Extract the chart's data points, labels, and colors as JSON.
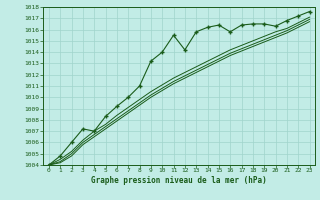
{
  "title": "Graphe pression niveau de la mer (hPa)",
  "bg_color": "#c2ece6",
  "grid_color": "#a0d4cc",
  "line_color": "#1a5c1a",
  "marker_color": "#1a5c1a",
  "xlim": [
    -0.5,
    23.5
  ],
  "ylim": [
    1004,
    1018
  ],
  "xticks": [
    0,
    1,
    2,
    3,
    4,
    5,
    6,
    7,
    8,
    9,
    10,
    11,
    12,
    13,
    14,
    15,
    16,
    17,
    18,
    19,
    20,
    21,
    22,
    23
  ],
  "yticks": [
    1004,
    1005,
    1006,
    1007,
    1008,
    1009,
    1010,
    1011,
    1012,
    1013,
    1014,
    1015,
    1016,
    1017,
    1018
  ],
  "series1_x": [
    0,
    1,
    2,
    3,
    4,
    5,
    6,
    7,
    8,
    9,
    10,
    11,
    12,
    13,
    14,
    15,
    16,
    17,
    18,
    19,
    20,
    21,
    22,
    23
  ],
  "series1_y": [
    1004.0,
    1004.8,
    1006.0,
    1007.2,
    1007.0,
    1008.3,
    1009.2,
    1010.0,
    1011.0,
    1013.2,
    1014.0,
    1015.5,
    1014.2,
    1015.8,
    1016.2,
    1016.4,
    1015.8,
    1016.4,
    1016.5,
    1016.5,
    1016.3,
    1016.8,
    1017.2,
    1017.6
  ],
  "series2_y": [
    1004.0,
    1004.5,
    1005.2,
    1006.2,
    1007.0,
    1007.6,
    1008.4,
    1009.1,
    1009.8,
    1010.5,
    1011.1,
    1011.7,
    1012.2,
    1012.7,
    1013.2,
    1013.7,
    1014.2,
    1014.6,
    1015.0,
    1015.4,
    1015.8,
    1016.1,
    1016.6,
    1017.1
  ],
  "series3_y": [
    1004.0,
    1004.3,
    1005.0,
    1006.0,
    1006.7,
    1007.4,
    1008.1,
    1008.8,
    1009.5,
    1010.2,
    1010.8,
    1011.4,
    1011.9,
    1012.4,
    1012.9,
    1013.4,
    1013.9,
    1014.3,
    1014.7,
    1015.1,
    1015.5,
    1015.9,
    1016.4,
    1016.9
  ],
  "series4_y": [
    1004.0,
    1004.2,
    1004.8,
    1005.8,
    1006.5,
    1007.2,
    1007.9,
    1008.6,
    1009.3,
    1010.0,
    1010.6,
    1011.2,
    1011.7,
    1012.2,
    1012.7,
    1013.2,
    1013.7,
    1014.1,
    1014.5,
    1014.9,
    1015.3,
    1015.7,
    1016.2,
    1016.7
  ]
}
